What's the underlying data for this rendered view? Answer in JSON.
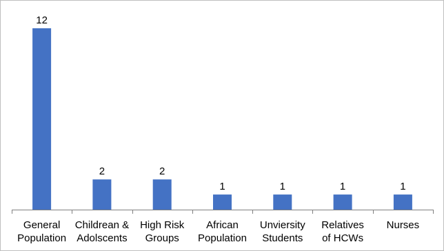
{
  "chart_data": {
    "type": "bar",
    "title": "",
    "xlabel": "",
    "ylabel": "",
    "categories": [
      [
        "General",
        "Population"
      ],
      [
        "Childrean &",
        "Adolscents"
      ],
      [
        "High Risk",
        "Groups"
      ],
      [
        "African",
        "Population"
      ],
      [
        "Unviersity",
        "Students"
      ],
      [
        "Relatives",
        "of HCWs"
      ],
      [
        "Nurses"
      ]
    ],
    "values": [
      12,
      2,
      2,
      1,
      1,
      1,
      1
    ],
    "data_labels": [
      "12",
      "2",
      "2",
      "1",
      "1",
      "1",
      "1"
    ],
    "ylim": [
      0,
      12
    ],
    "grid": false,
    "legend": "none",
    "bar_color": "#4472c4"
  }
}
